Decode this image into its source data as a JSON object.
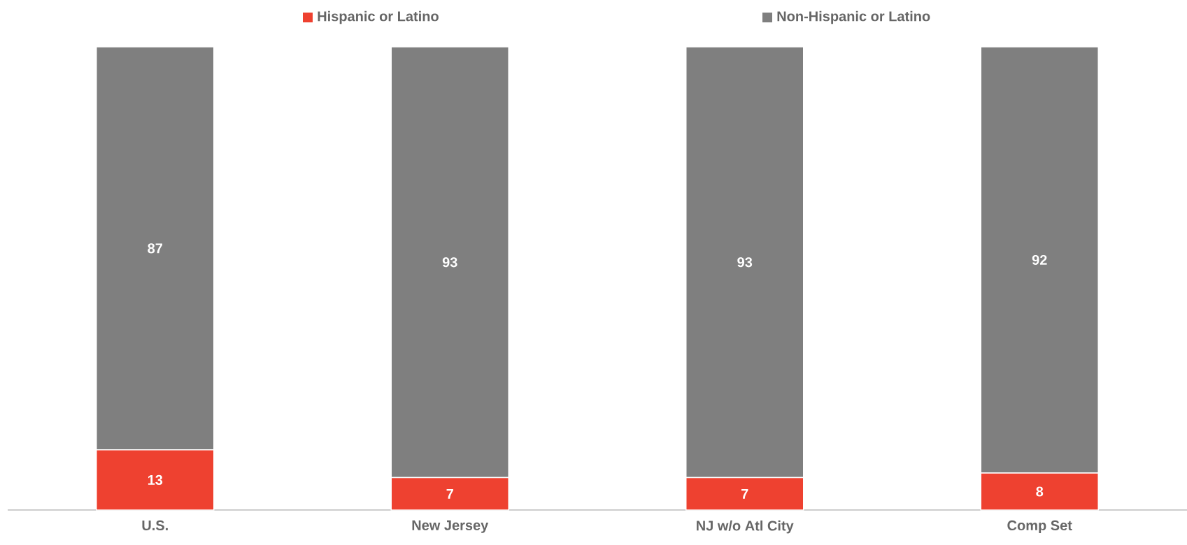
{
  "chart_data": {
    "type": "bar",
    "stacked": true,
    "categories": [
      "U.S.",
      "New Jersey",
      "NJ w/o Atl City",
      "Comp Set"
    ],
    "series": [
      {
        "name": "Hispanic or Latino",
        "color": "#ee4130",
        "values": [
          13,
          7,
          7,
          8
        ]
      },
      {
        "name": "Non-Hispanic or Latino",
        "color": "#7f7f7f",
        "values": [
          87,
          93,
          93,
          92
        ]
      }
    ],
    "data_labels": true,
    "legend": "top"
  }
}
